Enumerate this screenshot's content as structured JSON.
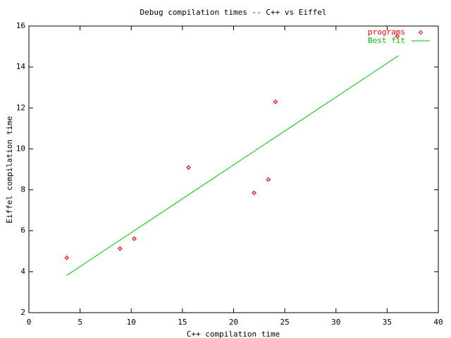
{
  "chart_data": {
    "type": "scatter",
    "title": "Debug compilation times -- C++ vs Eiffel",
    "xlabel": "C++ compilation time",
    "ylabel": "Eiffel compilation time",
    "xlim": [
      0,
      40
    ],
    "xticks": [
      0,
      5,
      10,
      15,
      20,
      25,
      30,
      35,
      40
    ],
    "ylim": [
      2,
      16
    ],
    "yticks": [
      2,
      4,
      6,
      8,
      10,
      12,
      14,
      16
    ],
    "grid": false,
    "legend": "top-right",
    "series": [
      {
        "name": "programs",
        "type": "scatter",
        "color": "#ff0000",
        "x": [
          3.7,
          8.9,
          10.3,
          15.6,
          22.0,
          23.4,
          24.1,
          36.0
        ],
        "values": [
          4.68,
          5.13,
          5.61,
          9.09,
          7.85,
          8.5,
          12.3,
          15.5
        ]
      },
      {
        "name": "Best fit",
        "type": "line",
        "color": "#00c000",
        "x": [
          3.7,
          36.1
        ],
        "values": [
          3.82,
          14.55
        ]
      }
    ]
  }
}
